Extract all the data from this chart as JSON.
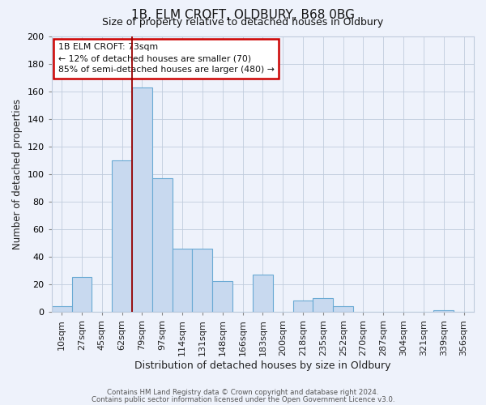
{
  "title": "1B, ELM CROFT, OLDBURY, B68 0BG",
  "subtitle": "Size of property relative to detached houses in Oldbury",
  "xlabel": "Distribution of detached houses by size in Oldbury",
  "ylabel": "Number of detached properties",
  "bar_color": "#c8d9ef",
  "bar_edge_color": "#6aaad4",
  "background_color": "#eef2fb",
  "grid_color": "#c0ccdd",
  "vline_color": "#990000",
  "vline_x_index": 3,
  "annotation_title": "1B ELM CROFT: 73sqm",
  "annotation_line1": "← 12% of detached houses are smaller (70)",
  "annotation_line2": "85% of semi-detached houses are larger (480) →",
  "categories": [
    "10sqm",
    "27sqm",
    "45sqm",
    "62sqm",
    "79sqm",
    "97sqm",
    "114sqm",
    "131sqm",
    "148sqm",
    "166sqm",
    "183sqm",
    "200sqm",
    "218sqm",
    "235sqm",
    "252sqm",
    "270sqm",
    "287sqm",
    "304sqm",
    "321sqm",
    "339sqm",
    "356sqm"
  ],
  "values": [
    4,
    25,
    0,
    110,
    163,
    97,
    46,
    46,
    22,
    0,
    27,
    0,
    8,
    10,
    4,
    0,
    0,
    0,
    0,
    1,
    0
  ],
  "ylim": [
    0,
    200
  ],
  "yticks": [
    0,
    20,
    40,
    60,
    80,
    100,
    120,
    140,
    160,
    180,
    200
  ],
  "footer1": "Contains HM Land Registry data © Crown copyright and database right 2024.",
  "footer2": "Contains public sector information licensed under the Open Government Licence v3.0."
}
